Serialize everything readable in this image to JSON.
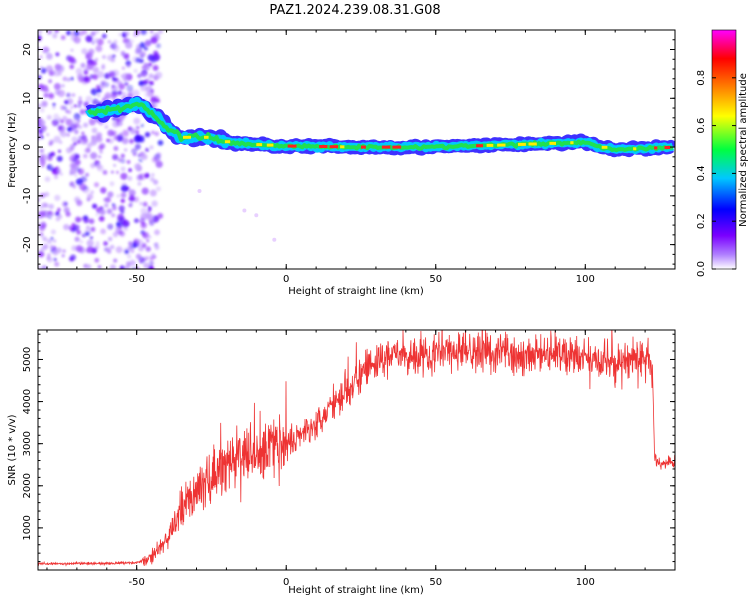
{
  "title": "PAZ1.2024.239.08.31.G08",
  "chart_data": [
    {
      "type": "heatmap",
      "xlabel": "Height of straight line (km)",
      "ylabel": "Frequency (Hz)",
      "xlim": [
        -83,
        130
      ],
      "ylim": [
        -25,
        24
      ],
      "x_ticks": [
        "-50",
        "0",
        "50",
        "100"
      ],
      "y_ticks": [
        "-20",
        "-10",
        "0",
        "10",
        "20"
      ],
      "colorbar": {
        "label": "Normalized spectral amplitude",
        "range": [
          0,
          1
        ],
        "ticks": [
          "0.0",
          "0.2",
          "0.4",
          "0.6",
          "0.8"
        ],
        "colors": [
          "#ffffff",
          "#7a00ff",
          "#0000ff",
          "#00c8ff",
          "#00ff40",
          "#ffff00",
          "#ff8000",
          "#ff0000",
          "#ff00ff"
        ]
      },
      "ridge": {
        "description_points_x": [
          -66,
          -60,
          -55,
          -50,
          -45,
          -40,
          -35,
          -30,
          -25,
          -20,
          -10,
          0,
          25,
          50,
          75,
          100,
          105,
          110,
          130
        ],
        "description_points_freq": [
          7,
          7.5,
          8,
          9,
          7,
          4,
          2,
          2,
          2,
          1,
          0.5,
          0.2,
          0,
          0,
          0.5,
          1,
          0,
          -0.5,
          0
        ],
        "scatter_region_x": [
          -83,
          -42
        ]
      }
    },
    {
      "type": "line",
      "xlabel": "Height of straight line (km)",
      "ylabel": "SNR (10 * v/v)",
      "xlim": [
        -83,
        130
      ],
      "ylim": [
        0,
        5700
      ],
      "x_ticks": [
        "-50",
        "0",
        "50",
        "100"
      ],
      "y_ticks": [
        "1000",
        "2000",
        "3000",
        "4000",
        "5000"
      ],
      "color": "#ee3333",
      "series": [
        {
          "x": [
            -83,
            -70,
            -60,
            -50,
            -46,
            -40,
            -35,
            -30,
            -25,
            -20,
            -15,
            -10,
            -5,
            0,
            5,
            10,
            15,
            20,
            25,
            30,
            35,
            40,
            50,
            60,
            70,
            80,
            90,
            100,
            110,
            115,
            122,
            123,
            125,
            130
          ],
          "y": [
            150,
            150,
            160,
            180,
            250,
            700,
            1400,
            1900,
            2200,
            2500,
            2700,
            2800,
            2900,
            3000,
            3200,
            3500,
            3900,
            4300,
            4600,
            4900,
            5050,
            5100,
            5150,
            5200,
            5150,
            5100,
            5100,
            5000,
            4900,
            5000,
            5000,
            2700,
            2500,
            2550
          ]
        }
      ]
    }
  ]
}
